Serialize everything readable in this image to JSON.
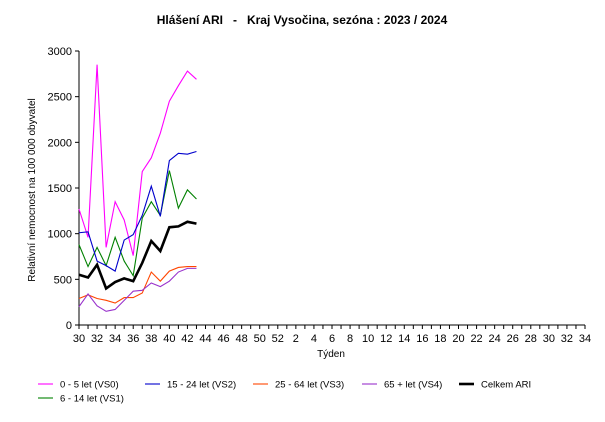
{
  "chart_data": {
    "type": "line",
    "title": "Hlášení ARI   -   Kraj Vysočina, sezóna : 2023 / 2024",
    "xlabel": "Týden",
    "ylabel": "Relativní nemocnost na 100 000 obyvatel",
    "ylim": [
      0,
      3000
    ],
    "yticks": [
      0,
      500,
      1000,
      1500,
      2000,
      2500,
      3000
    ],
    "xtick_labels": [
      "30",
      "32",
      "34",
      "36",
      "38",
      "40",
      "42",
      "44",
      "46",
      "48",
      "50",
      "52",
      "2",
      "4",
      "6",
      "8",
      "10",
      "12",
      "14",
      "16",
      "18",
      "20",
      "22",
      "24",
      "26",
      "28",
      "30",
      "32",
      "34"
    ],
    "weeks": [
      "30",
      "31",
      "32",
      "33",
      "34",
      "35",
      "36",
      "37",
      "38",
      "39",
      "40",
      "41",
      "42",
      "43"
    ],
    "grid": "none",
    "legend_position": "bottom",
    "series": [
      {
        "name": "0 - 5 let (VS0)",
        "color": "#ff00ff",
        "width": 1.1,
        "values": [
          1270,
          960,
          2850,
          850,
          1350,
          1150,
          760,
          1680,
          1830,
          2100,
          2450,
          2620,
          2780,
          2690
        ]
      },
      {
        "name": "6 - 14 let (VS1)",
        "color": "#008000",
        "width": 1.1,
        "values": [
          880,
          640,
          850,
          650,
          960,
          700,
          540,
          1170,
          1350,
          1200,
          1690,
          1280,
          1480,
          1380
        ]
      },
      {
        "name": "15 - 24 let (VS2)",
        "color": "#0000cc",
        "width": 1.1,
        "values": [
          1010,
          1020,
          700,
          650,
          590,
          930,
          990,
          1200,
          1520,
          1190,
          1800,
          1880,
          1870,
          1900
        ]
      },
      {
        "name": "25 - 64 let (VS3)",
        "color": "#ff4500",
        "width": 1.1,
        "values": [
          290,
          330,
          290,
          270,
          240,
          300,
          300,
          350,
          580,
          480,
          590,
          630,
          640,
          640
        ]
      },
      {
        "name": "65 + let (VS4)",
        "color": "#9932cc",
        "width": 1.1,
        "values": [
          200,
          340,
          210,
          150,
          170,
          270,
          370,
          380,
          460,
          420,
          480,
          580,
          620,
          620
        ]
      },
      {
        "name": "Celkem ARI",
        "color": "#000000",
        "width": 2.6,
        "values": [
          550,
          520,
          660,
          400,
          470,
          510,
          480,
          680,
          920,
          810,
          1070,
          1080,
          1130,
          1110
        ]
      }
    ]
  }
}
